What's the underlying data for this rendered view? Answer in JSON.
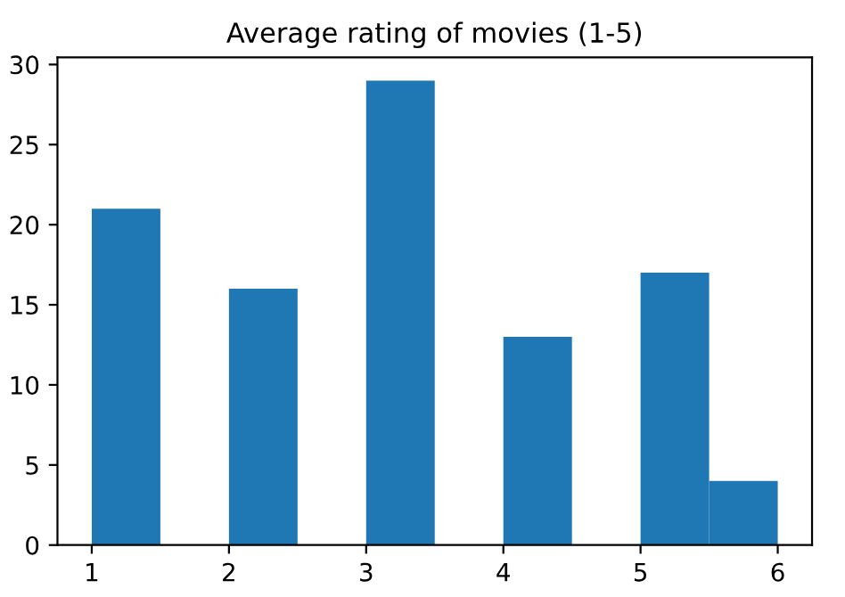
{
  "chart_data": {
    "type": "histogram",
    "title": "Average rating of movies (1-5)",
    "bins": [
      1,
      1.5,
      2,
      2.5,
      3,
      3.5,
      4,
      4.5,
      5,
      5.5,
      6
    ],
    "values": [
      21,
      0,
      16,
      0,
      29,
      0,
      13,
      0,
      17,
      4
    ],
    "color": "#1f77b4",
    "xlim": [
      0.75,
      6.25
    ],
    "xticks": [
      1,
      2,
      3,
      4,
      5,
      6
    ],
    "ylim": [
      0,
      30.45
    ],
    "yticks": [
      0,
      5,
      10,
      15,
      20,
      25,
      30
    ],
    "grid": false
  }
}
